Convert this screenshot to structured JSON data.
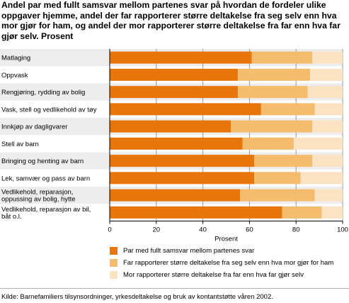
{
  "title": "Andel par med fullt samsvar mellom partenes svar på hvordan de fordeler ulike oppgaver hjemme, andel der far rapporterer større deltakelse fra seg selv enn hva mor gjør for ham, og andel der mor rapporterer større deltakelse fra far enn hva far gjør selv. Prosent",
  "source": "Kilde: Barnefamiliers tilsynsordninger, yrkesdeltakelse og bruk av kontantstøtte våren 2002.",
  "colors": {
    "series1": "#e8750a",
    "series2": "#f5bc6e",
    "series3": "#fbe2c2",
    "grid": "#9a9a9a",
    "row_band": "#ededed",
    "axis": "#000000"
  },
  "chart_data": {
    "type": "bar",
    "orientation": "horizontal",
    "stacked": true,
    "categories": [
      "Matlaging",
      "Oppvask",
      "Rengjøring, rydding av bolig",
      "Vask, stell og vedlikehold av tøy",
      "Innkjøp av dagligvarer",
      "Stell av barn",
      "Bringing og henting av barn",
      "Lek, samvær og pass av barn",
      "Vedlikehold, reparasjon, oppussing av bolig, hytte",
      "Vedlikehold, reparasjon av bil, båt o.l."
    ],
    "category_lines": [
      [
        "Matlaging"
      ],
      [
        "Oppvask"
      ],
      [
        "Rengjøring, rydding av bolig"
      ],
      [
        "Vask, stell og vedlikehold av tøy"
      ],
      [
        "Innkjøp av dagligvarer"
      ],
      [
        "Stell av barn"
      ],
      [
        "Bringing og henting av barn"
      ],
      [
        "Lek, samvær og pass av barn"
      ],
      [
        "Vedlikehold, reparasjon,",
        "oppussing av bolig, hytte"
      ],
      [
        "Vedlikehold, reparasjon av bil,",
        "båt o.l."
      ]
    ],
    "series": [
      {
        "name": "Par med fullt samsvar mellom partenes svar",
        "values": [
          61,
          55,
          55,
          65,
          52,
          57,
          62,
          62,
          56,
          74
        ]
      },
      {
        "name": "Far rapporterer større deltakelse fra seg selv enn hva mor gjør for ham",
        "values": [
          26,
          31,
          30,
          23,
          35,
          22,
          25,
          20,
          32,
          17
        ]
      },
      {
        "name": "Mor rapporterer større deltakelse fra far enn hva far gjør selv",
        "values": [
          13,
          14,
          15,
          12,
          13,
          21,
          13,
          18,
          12,
          9
        ]
      }
    ],
    "xlabel": "Prosent",
    "xlim": [
      0,
      100
    ],
    "xticks": [
      0,
      20,
      40,
      60,
      80,
      100
    ],
    "grid": "vertical",
    "legend": "bottom"
  }
}
